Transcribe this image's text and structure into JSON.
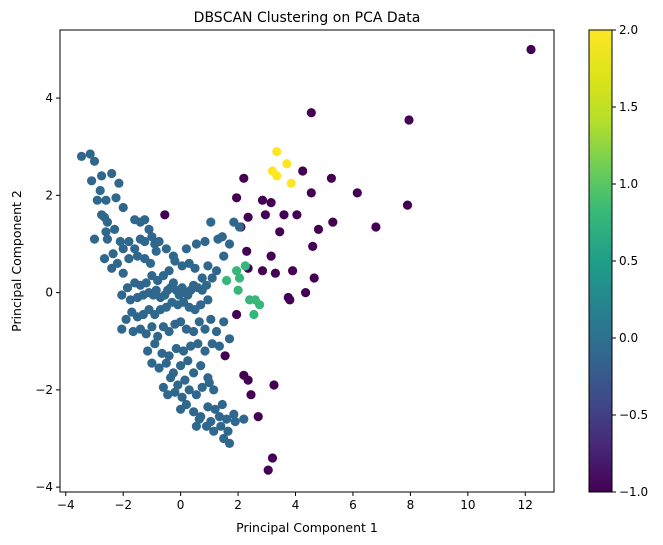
{
  "chart_data": {
    "type": "scatter",
    "title": "DBSCAN Clustering on PCA Data",
    "xlabel": "Principal Component 1",
    "ylabel": "Principal Component 2",
    "xlim": [
      -4.2,
      13.0
    ],
    "ylim": [
      -4.1,
      5.4
    ],
    "xticks": [
      -4,
      -2,
      0,
      2,
      4,
      6,
      8,
      10,
      12
    ],
    "yticks": [
      -4,
      -2,
      0,
      2,
      4
    ],
    "grid": false,
    "colormap": "viridis",
    "colorbar": {
      "range": [
        -1.0,
        2.0
      ],
      "ticks": [
        -1.0,
        -0.5,
        0.0,
        0.5,
        1.0,
        1.5,
        2.0
      ],
      "tick_labels": [
        "−1.0",
        "−0.5",
        "0.0",
        "0.5",
        "1.0",
        "1.5",
        "2.0"
      ]
    },
    "cluster_colors": {
      "-1": "#440154",
      "0": "#30678D",
      "1": "#35B779",
      "2": "#FDE725"
    },
    "series": [
      {
        "cluster": -1,
        "points": [
          [
            12.2,
            5.0
          ],
          [
            4.55,
            3.7
          ],
          [
            7.95,
            3.55
          ],
          [
            4.55,
            2.05
          ],
          [
            4.25,
            2.5
          ],
          [
            5.25,
            2.35
          ],
          [
            6.15,
            2.05
          ],
          [
            7.9,
            1.8
          ],
          [
            2.2,
            2.35
          ],
          [
            2.85,
            1.9
          ],
          [
            3.15,
            1.85
          ],
          [
            2.95,
            1.6
          ],
          [
            3.6,
            1.6
          ],
          [
            4.05,
            1.6
          ],
          [
            2.35,
            1.55
          ],
          [
            5.3,
            1.45
          ],
          [
            4.8,
            1.3
          ],
          [
            6.8,
            1.35
          ],
          [
            1.95,
            1.95
          ],
          [
            2.1,
            1.35
          ],
          [
            3.45,
            1.25
          ],
          [
            4.6,
            0.95
          ],
          [
            2.3,
            0.85
          ],
          [
            3.15,
            0.75
          ],
          [
            2.35,
            0.5
          ],
          [
            2.85,
            0.45
          ],
          [
            3.3,
            0.4
          ],
          [
            3.9,
            0.45
          ],
          [
            4.65,
            0.3
          ],
          [
            4.35,
            0.0
          ],
          [
            3.75,
            -0.1
          ],
          [
            3.8,
            -0.15
          ],
          [
            1.55,
            -1.3
          ],
          [
            2.2,
            -1.7
          ],
          [
            2.35,
            -1.8
          ],
          [
            3.25,
            -1.9
          ],
          [
            2.45,
            -2.1
          ],
          [
            2.7,
            -2.55
          ],
          [
            3.2,
            -3.4
          ],
          [
            3.05,
            -3.65
          ],
          [
            -0.55,
            1.6
          ],
          [
            1.95,
            -0.45
          ]
        ]
      },
      {
        "cluster": 0,
        "points": [
          [
            -3.45,
            2.8
          ],
          [
            -3.15,
            2.85
          ],
          [
            -3.0,
            2.7
          ],
          [
            -3.1,
            2.3
          ],
          [
            -2.75,
            2.4
          ],
          [
            -2.4,
            2.45
          ],
          [
            -2.15,
            2.25
          ],
          [
            -2.8,
            2.1
          ],
          [
            -2.25,
            1.95
          ],
          [
            -2.6,
            1.9
          ],
          [
            -2.9,
            1.9
          ],
          [
            -2.75,
            1.6
          ],
          [
            -2.65,
            1.55
          ],
          [
            -2.55,
            1.45
          ],
          [
            -2.3,
            1.3
          ],
          [
            -2.0,
            1.75
          ],
          [
            -2.6,
            1.25
          ],
          [
            -3.0,
            1.1
          ],
          [
            -2.55,
            1.1
          ],
          [
            -2.1,
            1.05
          ],
          [
            -1.8,
            1.05
          ],
          [
            -1.6,
            1.5
          ],
          [
            -1.4,
            1.45
          ],
          [
            -1.25,
            1.5
          ],
          [
            -1.1,
            1.3
          ],
          [
            -1.4,
            1.1
          ],
          [
            -1.25,
            1.05
          ],
          [
            -1.0,
            1.15
          ],
          [
            -0.9,
            1.0
          ],
          [
            -0.75,
            1.05
          ],
          [
            -1.6,
            0.9
          ],
          [
            -2.0,
            0.9
          ],
          [
            -2.35,
            0.8
          ],
          [
            -2.65,
            0.7
          ],
          [
            -2.4,
            0.5
          ],
          [
            -2.2,
            0.6
          ],
          [
            -2.0,
            0.4
          ],
          [
            -1.8,
            0.7
          ],
          [
            -1.5,
            0.75
          ],
          [
            -1.25,
            0.7
          ],
          [
            -1.05,
            0.6
          ],
          [
            -0.85,
            0.85
          ],
          [
            -0.5,
            0.9
          ],
          [
            -0.25,
            0.75
          ],
          [
            0.2,
            0.9
          ],
          [
            0.55,
            1.0
          ],
          [
            0.85,
            1.05
          ],
          [
            1.05,
            1.45
          ],
          [
            1.3,
            1.1
          ],
          [
            1.45,
            1.15
          ],
          [
            1.7,
            1.0
          ],
          [
            1.85,
            1.45
          ],
          [
            2.05,
            1.35
          ],
          [
            1.5,
            0.75
          ],
          [
            1.25,
            0.45
          ],
          [
            0.95,
            0.55
          ],
          [
            0.75,
            0.3
          ],
          [
            0.5,
            0.5
          ],
          [
            0.3,
            0.6
          ],
          [
            0.05,
            0.55
          ],
          [
            -0.2,
            0.65
          ],
          [
            -0.4,
            0.45
          ],
          [
            -0.6,
            0.35
          ],
          [
            -0.8,
            0.25
          ],
          [
            -1.0,
            0.35
          ],
          [
            -1.2,
            0.2
          ],
          [
            -1.4,
            0.15
          ],
          [
            -1.6,
            0.2
          ],
          [
            -1.85,
            0.1
          ],
          [
            -2.05,
            -0.05
          ],
          [
            -1.75,
            -0.15
          ],
          [
            -1.5,
            -0.1
          ],
          [
            -1.3,
            -0.05
          ],
          [
            -1.1,
            0.0
          ],
          [
            -0.95,
            -0.05
          ],
          [
            -0.85,
            0.05
          ],
          [
            -0.7,
            -0.1
          ],
          [
            -0.55,
            -0.05
          ],
          [
            -0.45,
            0.05
          ],
          [
            -0.35,
            0.1
          ],
          [
            -0.25,
            0.2
          ],
          [
            -0.15,
            0.05
          ],
          [
            -0.05,
            -0.05
          ],
          [
            0.05,
            0.1
          ],
          [
            0.15,
            0.0
          ],
          [
            0.25,
            -0.05
          ],
          [
            0.35,
            0.05
          ],
          [
            0.45,
            0.15
          ],
          [
            0.6,
            0.1
          ],
          [
            0.75,
            0.05
          ],
          [
            0.9,
            0.15
          ],
          [
            1.1,
            0.3
          ],
          [
            0.95,
            -0.15
          ],
          [
            0.7,
            -0.25
          ],
          [
            0.5,
            -0.35
          ],
          [
            0.3,
            -0.3
          ],
          [
            0.1,
            -0.2
          ],
          [
            -0.1,
            -0.25
          ],
          [
            -0.3,
            -0.2
          ],
          [
            -0.5,
            -0.3
          ],
          [
            -0.7,
            -0.35
          ],
          [
            -0.9,
            -0.45
          ],
          [
            -1.1,
            -0.35
          ],
          [
            -1.3,
            -0.45
          ],
          [
            -1.5,
            -0.5
          ],
          [
            -1.7,
            -0.4
          ],
          [
            -1.9,
            -0.55
          ],
          [
            -2.05,
            -0.75
          ],
          [
            -1.65,
            -0.8
          ],
          [
            -1.4,
            -0.75
          ],
          [
            -1.2,
            -0.85
          ],
          [
            -1.0,
            -0.7
          ],
          [
            -0.8,
            -0.9
          ],
          [
            -0.6,
            -0.7
          ],
          [
            -0.4,
            -0.8
          ],
          [
            -0.2,
            -0.65
          ],
          [
            0.0,
            -0.6
          ],
          [
            0.2,
            -0.75
          ],
          [
            0.45,
            -0.8
          ],
          [
            0.65,
            -0.6
          ],
          [
            0.85,
            -0.75
          ],
          [
            1.05,
            -0.55
          ],
          [
            1.25,
            -0.8
          ],
          [
            1.5,
            -0.6
          ],
          [
            1.7,
            -0.95
          ],
          [
            1.35,
            -1.1
          ],
          [
            1.1,
            -1.05
          ],
          [
            0.85,
            -1.2
          ],
          [
            0.6,
            -1.05
          ],
          [
            0.35,
            -1.1
          ],
          [
            0.1,
            -1.2
          ],
          [
            -0.15,
            -1.15
          ],
          [
            -0.4,
            -1.3
          ],
          [
            -0.65,
            -1.25
          ],
          [
            -0.9,
            -1.05
          ],
          [
            -1.15,
            -1.2
          ],
          [
            -1.0,
            -1.45
          ],
          [
            -0.75,
            -1.55
          ],
          [
            -0.5,
            -1.45
          ],
          [
            -0.25,
            -1.65
          ],
          [
            0.0,
            -1.5
          ],
          [
            0.25,
            -1.4
          ],
          [
            0.45,
            -1.65
          ],
          [
            0.7,
            -1.5
          ],
          [
            0.95,
            -1.75
          ],
          [
            0.15,
            -1.8
          ],
          [
            -0.1,
            -1.9
          ],
          [
            -0.35,
            -1.75
          ],
          [
            -0.6,
            -1.95
          ],
          [
            -0.45,
            -2.1
          ],
          [
            -0.2,
            -2.05
          ],
          [
            0.05,
            -2.15
          ],
          [
            0.3,
            -2.0
          ],
          [
            0.55,
            -2.1
          ],
          [
            0.75,
            -1.95
          ],
          [
            1.0,
            -1.85
          ],
          [
            1.15,
            -2.0
          ],
          [
            0.0,
            -2.4
          ],
          [
            0.2,
            -2.3
          ],
          [
            0.45,
            -2.45
          ],
          [
            0.7,
            -2.55
          ],
          [
            0.95,
            -2.35
          ],
          [
            1.2,
            -2.4
          ],
          [
            1.45,
            -2.3
          ],
          [
            1.6,
            -2.6
          ],
          [
            1.85,
            -2.5
          ],
          [
            1.4,
            -2.75
          ],
          [
            1.15,
            -2.85
          ],
          [
            0.9,
            -2.75
          ],
          [
            0.65,
            -2.6
          ],
          [
            1.5,
            -3.0
          ],
          [
            1.7,
            -3.1
          ],
          [
            1.9,
            -2.65
          ],
          [
            2.2,
            -2.6
          ],
          [
            1.65,
            -2.85
          ],
          [
            1.05,
            -2.65
          ],
          [
            1.35,
            -2.55
          ],
          [
            0.55,
            -2.75
          ]
        ]
      },
      {
        "cluster": 1,
        "points": [
          [
            1.95,
            0.45
          ],
          [
            2.25,
            0.55
          ],
          [
            2.05,
            0.3
          ],
          [
            1.6,
            0.25
          ],
          [
            2.0,
            0.05
          ],
          [
            2.4,
            -0.15
          ],
          [
            2.6,
            -0.15
          ],
          [
            2.75,
            -0.25
          ],
          [
            2.55,
            -0.45
          ]
        ]
      },
      {
        "cluster": 2,
        "points": [
          [
            3.35,
            2.9
          ],
          [
            3.7,
            2.65
          ],
          [
            3.2,
            2.5
          ],
          [
            3.35,
            2.4
          ],
          [
            3.85,
            2.25
          ]
        ]
      }
    ]
  }
}
